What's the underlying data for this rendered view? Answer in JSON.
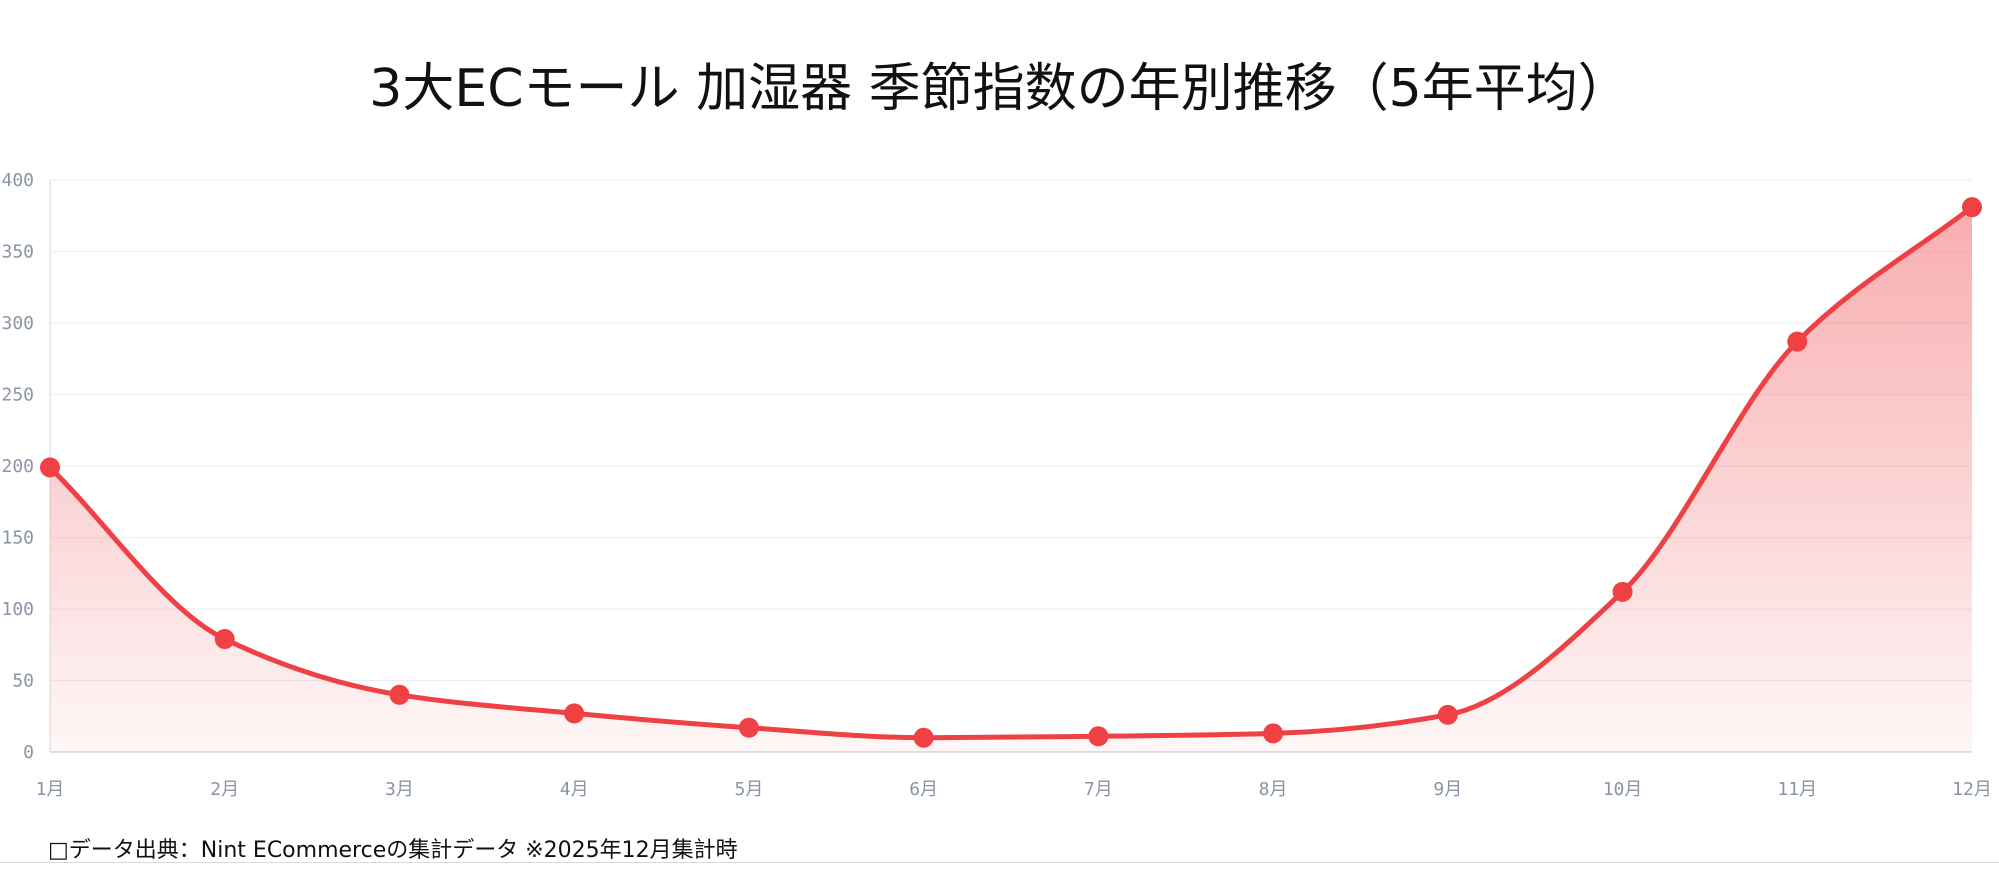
{
  "title": "3大ECモール  加湿器  季節指数の年別推移（5年平均）",
  "source_note": "□データ出典：Nint ECommerceの集計データ  ※2025年12月集計時",
  "colors": {
    "line": "#ef4044",
    "fill": "#f26b6e",
    "grid": "#eef0f3",
    "tick": "#8a94a6"
  },
  "chart_data": {
    "type": "area",
    "title": "3大ECモール  加湿器  季節指数の年別推移（5年平均）",
    "xlabel": "",
    "ylabel": "",
    "categories": [
      "1月",
      "2月",
      "3月",
      "4月",
      "5月",
      "6月",
      "7月",
      "8月",
      "9月",
      "10月",
      "11月",
      "12月"
    ],
    "series": [
      {
        "values": [
          199,
          79,
          40,
          27,
          17,
          10,
          11,
          13,
          26,
          112,
          287,
          381
        ]
      }
    ],
    "ylim": [
      0,
      400
    ],
    "yticks": [
      0,
      50,
      100,
      150,
      200,
      250,
      300,
      350,
      400
    ],
    "grid": true,
    "legend": "none"
  }
}
